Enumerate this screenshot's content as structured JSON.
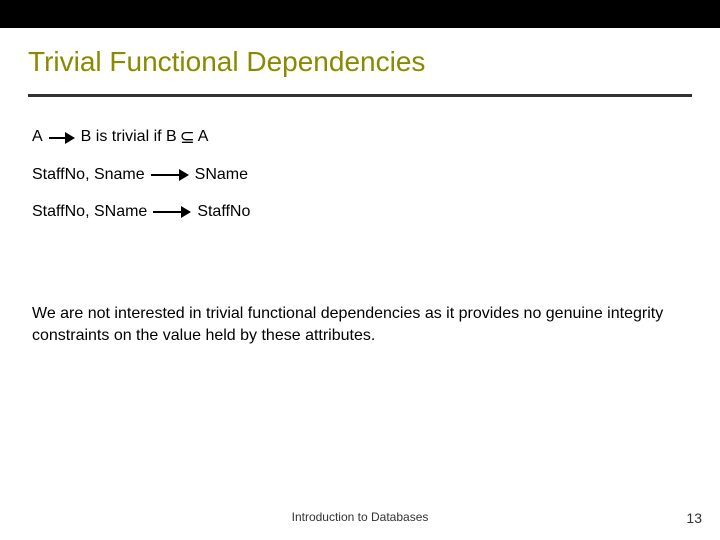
{
  "colors": {
    "topbar": "#000000",
    "title": "#8a8a00",
    "rule": "#333333",
    "background": "#ffffff",
    "text": "#000000",
    "footer": "#333333"
  },
  "typography": {
    "title_fontsize": 28,
    "body_fontsize": 16,
    "footer_fontsize": 12,
    "pagenum_fontsize": 14,
    "font_family": "Arial"
  },
  "title": "Trivial Functional Dependencies",
  "lines": {
    "l1_left": "A",
    "l1_mid": "B is trivial if B",
    "l1_subset": "⊆",
    "l1_right": "A",
    "l2_left": "StaffNo, Sname",
    "l2_right": "SName",
    "l3_left": "StaffNo, SName",
    "l3_right": "StaffNo"
  },
  "paragraph": "We are not interested in trivial functional dependencies as it provides no genuine  integrity constraints on the value held by these attributes.",
  "footer": "Introduction to Databases",
  "page_number": "13"
}
